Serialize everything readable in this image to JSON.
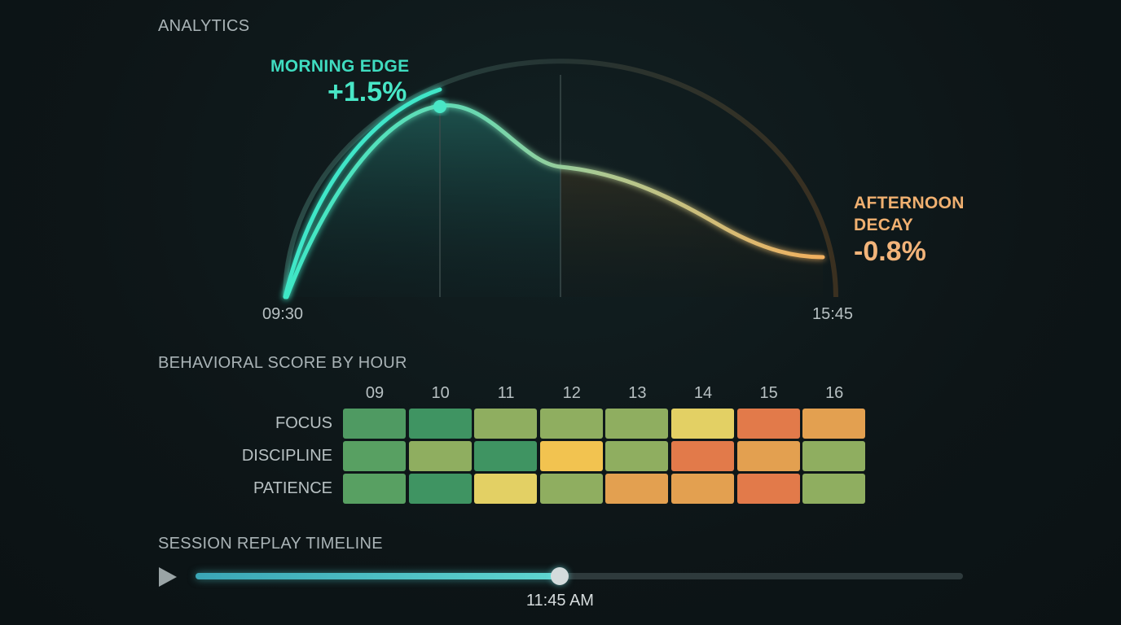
{
  "analytics": {
    "title": "ANALYTICS",
    "start_time": "09:30",
    "end_time": "15:45",
    "morning": {
      "title": "MORNING EDGE",
      "value": "+1.5%"
    },
    "afternoon": {
      "title": "AFTERNOON DECAY",
      "value": "-0.8%"
    }
  },
  "colors": {
    "morning": "#3fdcc0",
    "afternoon": "#f0b070",
    "score_high": "#3f9a62",
    "score_good": "#8fb060",
    "score_mid": "#e3d264",
    "score_warn": "#e0a050",
    "score_low": "#e07a4a"
  },
  "behavior": {
    "title": "BEHAVIORAL SCORE BY HOUR",
    "hours": [
      "09",
      "10",
      "11",
      "12",
      "13",
      "14",
      "15",
      "16"
    ],
    "rows": [
      {
        "label": "FOCUS",
        "cells": [
          "#4f9a62",
          "#3f9462",
          "#8fae60",
          "#8fae60",
          "#8fae60",
          "#e3d064",
          "#e27a4a",
          "#e3a050"
        ]
      },
      {
        "label": "DISCIPLINE",
        "cells": [
          "#58a062",
          "#8fae60",
          "#3f9462",
          "#f2c350",
          "#8fae60",
          "#e27a4a",
          "#e3a050",
          "#8fae60"
        ]
      },
      {
        "label": "PATIENCE",
        "cells": [
          "#58a062",
          "#3f9462",
          "#e3d064",
          "#8fae60",
          "#e3a050",
          "#e3a050",
          "#e27a4a",
          "#8fae60"
        ]
      }
    ]
  },
  "replay": {
    "title": "SESSION REPLAY TIMELINE",
    "current_time": "11:45 AM",
    "progress": 0.475,
    "play_icon": "play-icon"
  }
}
